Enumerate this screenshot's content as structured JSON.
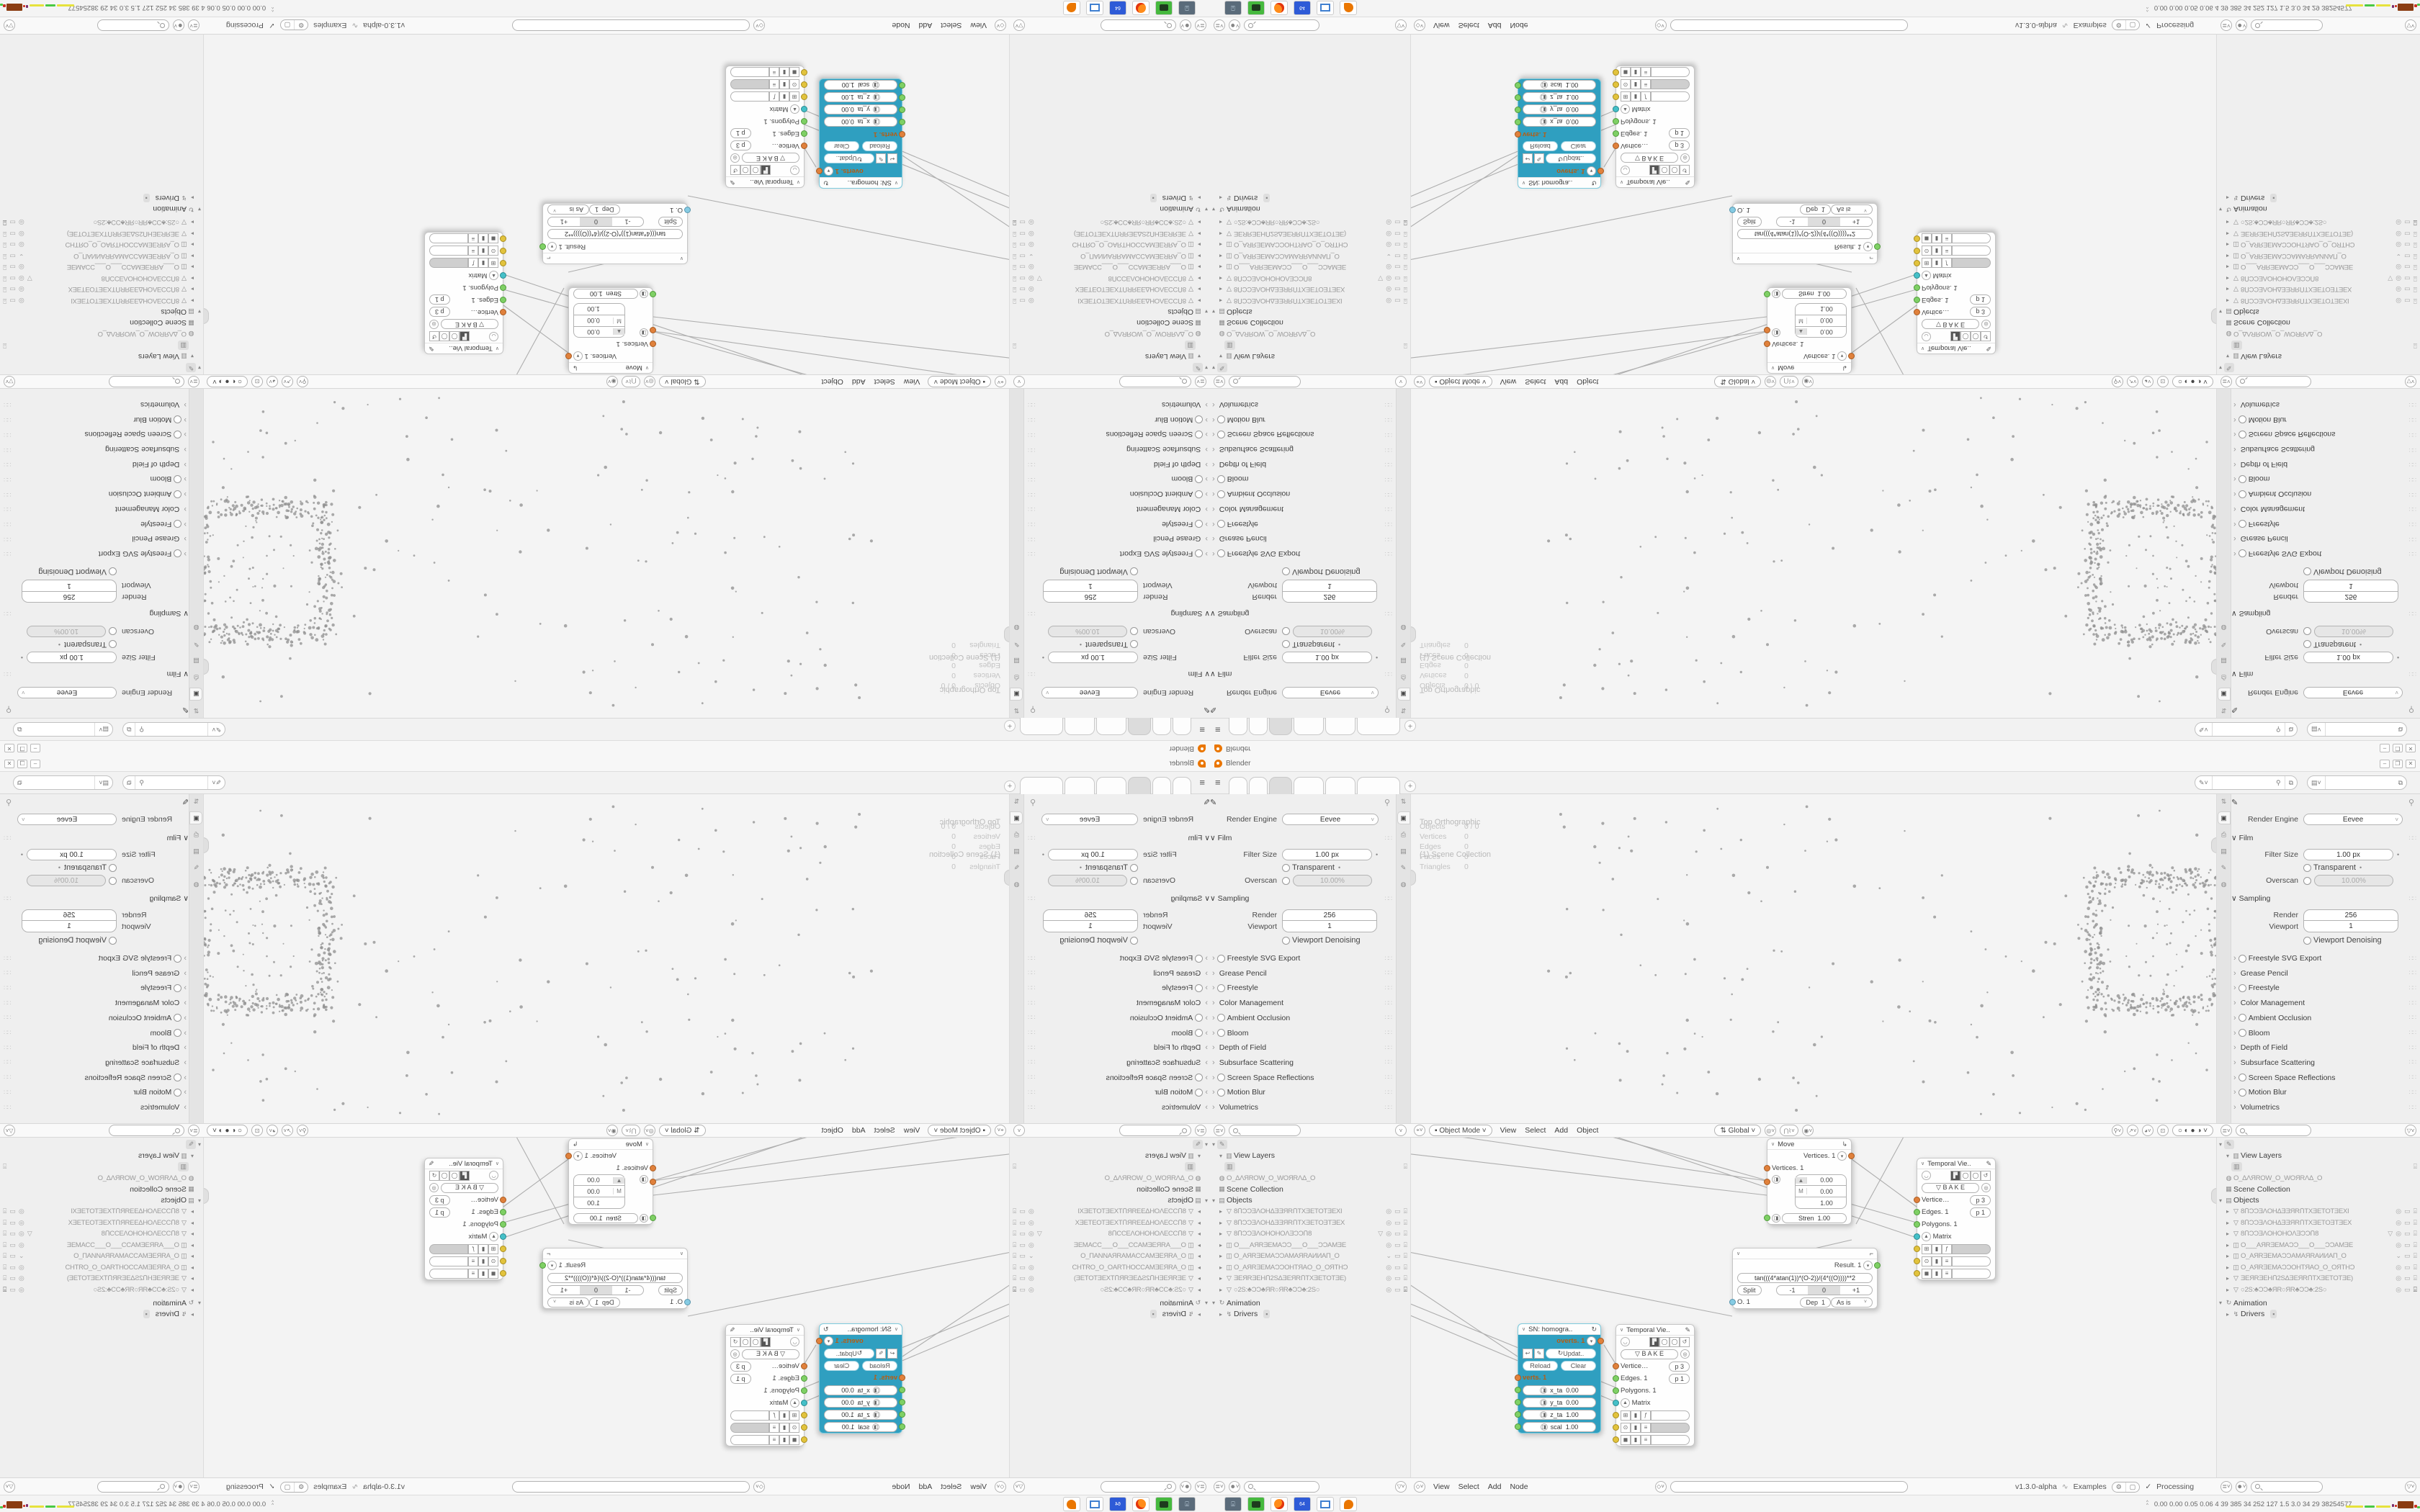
{
  "colors": {
    "accent_teal": "#2f9fc0",
    "socket_orange": "#e0813c",
    "socket_green": "#7fd065",
    "socket_teal": "#45c0c8",
    "socket_yellow": "#e2c33d",
    "socket_blue": "#86cbe3",
    "blender_orange": "#ea7600",
    "firefox_orange": "#ff8c1a",
    "taskbar_green": "#46b93e",
    "floppy_blue": "#2e5bd7",
    "frame_blue": "#3f7fd0",
    "tray_brown": "#8a3c12",
    "tray_yellow": "#e6e23c",
    "tray_green": "#49c943"
  },
  "window": {
    "app_title": "Blender",
    "min_glyph": "–",
    "max_glyph": "❐",
    "close_glyph": "✕"
  },
  "topbar": {
    "tab_labels": [
      "",
      "",
      "",
      "",
      "",
      ""
    ],
    "active_tab": 2,
    "plus_glyph": "+"
  },
  "properties": {
    "render_engine_label": "Render Engine",
    "render_engine_value": "Eevee",
    "film_title": "Film",
    "filter_size_label": "Filter Size",
    "filter_size_value": "1.00 px",
    "transparent_label": "Transparent",
    "overscan_label": "Overscan",
    "overscan_value": "10.00%",
    "sampling_title": "Sampling",
    "render_label": "Render",
    "render_value": "256",
    "viewport_label": "Viewport",
    "viewport_value": "1",
    "denoise_label": "Viewport Denoising",
    "collapsed_sections": [
      {
        "label": "Freestyle SVG Export",
        "checkbox": true
      },
      {
        "label": "Grease Pencil",
        "checkbox": false
      },
      {
        "label": "Freestyle",
        "checkbox": true
      },
      {
        "label": "Color Management",
        "checkbox": false
      },
      {
        "label": "Ambient Occlusion",
        "checkbox": true
      },
      {
        "label": "Bloom",
        "checkbox": true
      },
      {
        "label": "Depth of Field",
        "checkbox": false
      },
      {
        "label": "Subsurface Scattering",
        "checkbox": false
      },
      {
        "label": "Screen Space Reflections",
        "checkbox": true
      },
      {
        "label": "Motion Blur",
        "checkbox": true
      },
      {
        "label": "Volumetrics",
        "checkbox": false
      }
    ]
  },
  "viewport": {
    "overlay_line1": "Top Orthographic",
    "overlay_line2": "(1) Scene Collection",
    "stats": [
      [
        "Objects",
        "0 / 0"
      ],
      [
        "Vertices",
        "0"
      ],
      [
        "Edges",
        "0"
      ],
      [
        "Faces",
        "0"
      ],
      [
        "Triangles",
        "0"
      ]
    ],
    "header": {
      "mode": "Object Mode",
      "menus": [
        "View",
        "Select",
        "Add",
        "Object"
      ],
      "orientation": "Global"
    }
  },
  "node_editor": {
    "menus": [
      "View",
      "Select",
      "Add",
      "Node"
    ],
    "move_node": {
      "title": "Move",
      "output": "Vertices. 1",
      "input": "Vertices. 1",
      "vector_rows": [
        {
          "prefix": "▲",
          "value": "0.00"
        },
        {
          "prefix": "M",
          "value": "0.00"
        },
        {
          "prefix": "",
          "value": "1.00"
        }
      ],
      "strength_label": "Stren",
      "strength_value": "1.00"
    },
    "formula_node": {
      "output": "Result. 1",
      "formula": "tan(((4*atan(1))*(O-2))/(4*((O))))**2",
      "split_label": "Split",
      "segments": [
        "-1",
        "0",
        "+1"
      ],
      "active_segment": 1,
      "o_label": "O. 1",
      "dep_label": "Dep",
      "dep_value": "1",
      "mode_value": "As is"
    },
    "sn_node": {
      "title": "SN: homogra..",
      "output": "overts. 1",
      "update_label": "Updat..",
      "reload_label": "Reload",
      "clear_label": "Clear",
      "verts_label": "verts. 1",
      "fields": [
        [
          "x_ta",
          "0.00"
        ],
        [
          "y_ta",
          "0.00"
        ],
        [
          "z_ta",
          "1.00"
        ],
        [
          "scal",
          "1.00"
        ]
      ]
    },
    "temporal_node": {
      "title": "Temporal Vie..",
      "bake_label": "B A K E",
      "socket_rows": [
        {
          "label": "Vertice…",
          "pill": "p  3",
          "socket": "so"
        },
        {
          "label": "Edges. 1",
          "pill": "p  1",
          "socket": "sg"
        },
        {
          "label": "Polygons. 1",
          "pill": "",
          "socket": "sg"
        },
        {
          "label": "Matrix",
          "pill": "",
          "socket": "st"
        }
      ]
    }
  },
  "outliner": {
    "view_layers": "View Layers",
    "camera_name": "O_ΔΛЯROW_O_WOЯRΛΔ_O",
    "scene_collection": "Scene Collection",
    "objects_label": "Objects",
    "rows": [
      {
        "type": "mesh",
        "name": "8ՈƆƆƎΛOHΔƎƎЯRՈTXƎETOTƎEXӀ",
        "vis": "eye",
        "cam": "normal",
        "funnel": false
      },
      {
        "type": "mesh",
        "name": "8ՈƆƆƎΛOHΔƎƎЯRՈTXƎETOƎTƎEX",
        "vis": "eye",
        "cam": "normal",
        "funnel": false
      },
      {
        "type": "mesh",
        "name": "8ՈƆƆƎΛOHOHOΛƎƆƆՈ8",
        "vis": "eye",
        "cam": "normal",
        "funnel": true
      },
      {
        "type": "camera",
        "name": "O___AЯRƎEMAƆƆ___O___ƆƆAMƎE",
        "vis": "eye",
        "cam": "normal",
        "funnel": false
      },
      {
        "type": "camera",
        "name": "O_AЯRƎEMAƆƆAMAЯRAИИAП_O",
        "vis": "chev",
        "cam": "normal",
        "funnel": false
      },
      {
        "type": "camera",
        "name": "O_AЯRƎEMAƆƆOHTЯAO_O_OЯTHƆ",
        "vis": "eye",
        "cam": "normal",
        "funnel": false
      },
      {
        "type": "mesh",
        "name": "ƎEЯRƎEHՈ2SΔƎEЯRՈTXƎETOTƎE)",
        "vis": "eye",
        "cam": "normal",
        "funnel": false
      },
      {
        "type": "mesh",
        "name": "○2S:♣ƆƆ♣ЯR○ЯR♣ƆƆ♣:2S○",
        "vis": "eye",
        "cam": "active",
        "funnel": false
      }
    ],
    "animation_label": "Animation",
    "drivers_label": "Drivers"
  },
  "statusbar": {
    "version": "v1.3.0-alpha",
    "examples": "Examples",
    "check": "✓",
    "processing": "Processing"
  },
  "stats_row": {
    "values": [
      "0.00",
      "0.00",
      "0.05",
      "0.06",
      "4",
      "39",
      "385",
      "34",
      "252",
      "127",
      "1.5",
      "3.0",
      "34",
      "29",
      "38254577"
    ]
  },
  "taskbar": {
    "apps": [
      "screen-camera",
      "capture-green",
      "firefox",
      "floppy-64",
      "frame-blue",
      "blender"
    ],
    "floppy_label": "64"
  },
  "icons": {
    "props_tabs": [
      "⇅",
      "▣",
      "⎙",
      "▤",
      "✎",
      "◍"
    ]
  }
}
